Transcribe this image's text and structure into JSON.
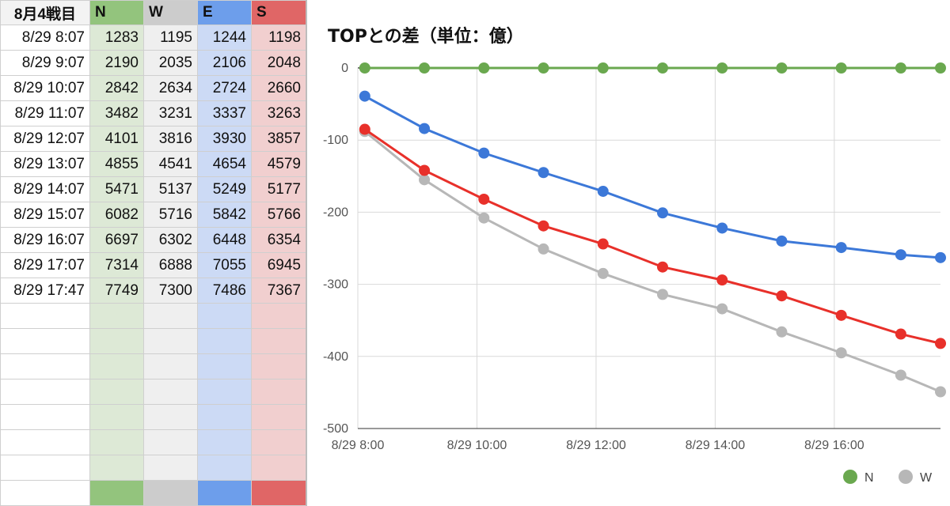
{
  "table": {
    "corner": "8月4戦目",
    "headers": [
      "N",
      "W",
      "E",
      "S"
    ],
    "rows": [
      {
        "time": "8/29 8:07",
        "N": "1283",
        "W": "1195",
        "E": "1244",
        "S": "1198"
      },
      {
        "time": "8/29 9:07",
        "N": "2190",
        "W": "2035",
        "E": "2106",
        "S": "2048"
      },
      {
        "time": "8/29 10:07",
        "N": "2842",
        "W": "2634",
        "E": "2724",
        "S": "2660"
      },
      {
        "time": "8/29 11:07",
        "N": "3482",
        "W": "3231",
        "E": "3337",
        "S": "3263"
      },
      {
        "time": "8/29 12:07",
        "N": "4101",
        "W": "3816",
        "E": "3930",
        "S": "3857"
      },
      {
        "time": "8/29 13:07",
        "N": "4855",
        "W": "4541",
        "E": "4654",
        "S": "4579"
      },
      {
        "time": "8/29 14:07",
        "N": "5471",
        "W": "5137",
        "E": "5249",
        "S": "5177"
      },
      {
        "time": "8/29 15:07",
        "N": "6082",
        "W": "5716",
        "E": "5842",
        "S": "5766"
      },
      {
        "time": "8/29 16:07",
        "N": "6697",
        "W": "6302",
        "E": "6448",
        "S": "6354"
      },
      {
        "time": "8/29 17:07",
        "N": "7314",
        "W": "6888",
        "E": "7055",
        "S": "6945"
      },
      {
        "time": "8/29 17:47",
        "N": "7749",
        "W": "7300",
        "E": "7486",
        "S": "7367"
      }
    ]
  },
  "colors": {
    "N": "#6aa84f",
    "W": "#b7b7b7",
    "E": "#3c78d8",
    "S": "#e8302a"
  },
  "chart_data": {
    "type": "line",
    "title": "TOPとの差（単位：億）",
    "xlabel": "",
    "ylabel": "",
    "x": [
      "8/29 8:07",
      "8/29 9:07",
      "8/29 10:07",
      "8/29 11:07",
      "8/29 12:07",
      "8/29 13:07",
      "8/29 14:07",
      "8/29 15:07",
      "8/29 16:07",
      "8/29 17:07",
      "8/29 17:47"
    ],
    "x_hours": [
      8.117,
      9.117,
      10.117,
      11.117,
      12.117,
      13.117,
      14.117,
      15.117,
      16.117,
      17.117,
      17.783
    ],
    "xlim": [
      8,
      17.783
    ],
    "x_ticks": [
      {
        "value": 8,
        "label": "8/29 8:00"
      },
      {
        "value": 10,
        "label": "8/29 10:00"
      },
      {
        "value": 12,
        "label": "8/29 12:00"
      },
      {
        "value": 14,
        "label": "8/29 14:00"
      },
      {
        "value": 16,
        "label": "8/29 16:00"
      }
    ],
    "x_gridlines": [
      8,
      10,
      12,
      14,
      16
    ],
    "ylim": [
      -500,
      0
    ],
    "y_ticks": [
      0,
      -100,
      -200,
      -300,
      -400,
      -500
    ],
    "grid": true,
    "legend": "bottom",
    "series": [
      {
        "name": "N",
        "values": [
          0,
          0,
          0,
          0,
          0,
          0,
          0,
          0,
          0,
          0,
          0
        ]
      },
      {
        "name": "W",
        "values": [
          -88,
          -155,
          -208,
          -251,
          -285,
          -314,
          -334,
          -366,
          -395,
          -426,
          -449
        ]
      },
      {
        "name": "E",
        "values": [
          -39,
          -84,
          -118,
          -145,
          -171,
          -201,
          -222,
          -240,
          -249,
          -259,
          -263
        ]
      },
      {
        "name": "S",
        "values": [
          -85,
          -142,
          -182,
          -219,
          -244,
          -276,
          -294,
          -316,
          -343,
          -369,
          -382
        ]
      }
    ]
  }
}
